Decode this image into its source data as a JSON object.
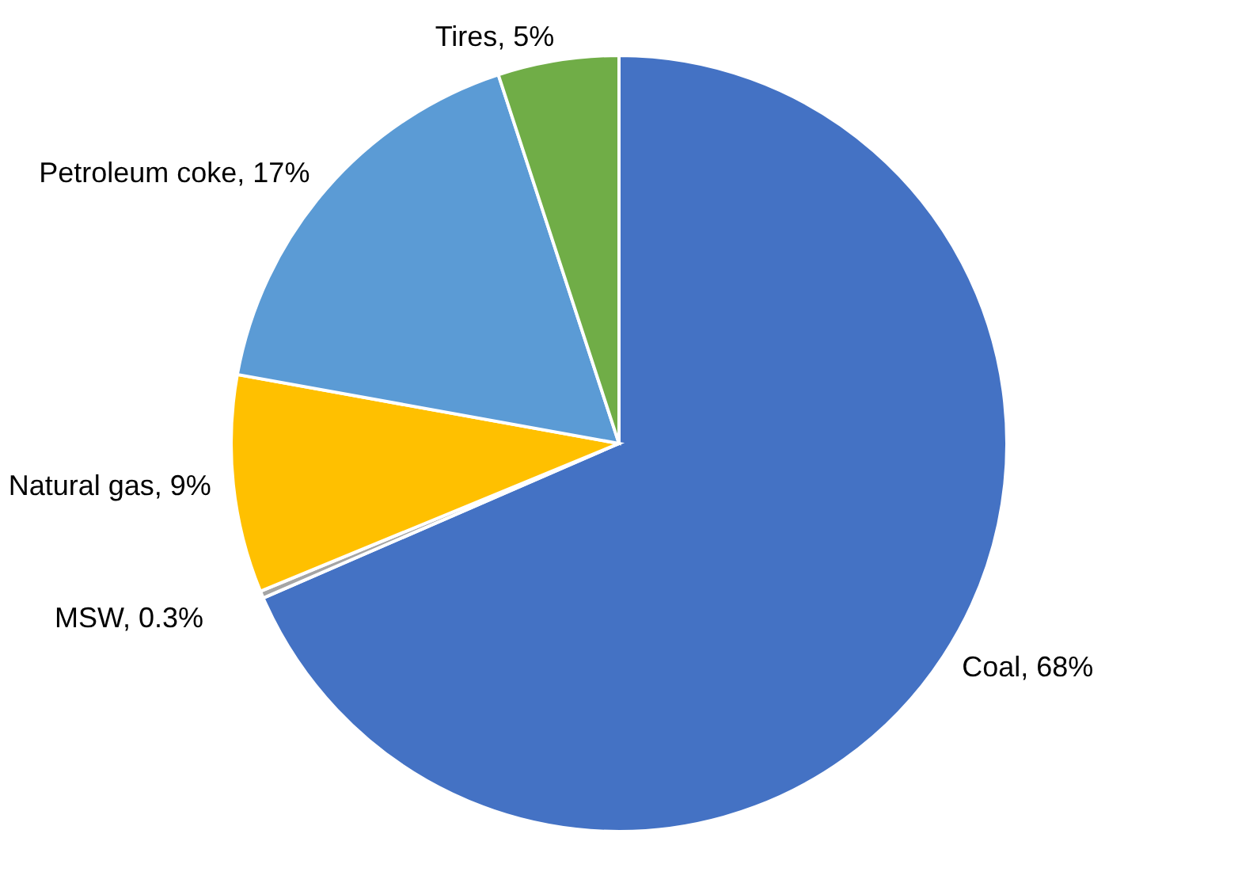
{
  "chart_data": {
    "type": "pie",
    "categories": [
      "Coal",
      "MSW",
      "Natural gas",
      "Petroleum coke",
      "Tires"
    ],
    "values": [
      68,
      0.3,
      9,
      17,
      5
    ],
    "value_labels": [
      "68%",
      "0.3%",
      "9%",
      "17%",
      "5%"
    ],
    "colors": [
      "#4472c4",
      "#a5a5a5",
      "#ffc000",
      "#5b9bd5",
      "#70ad47"
    ]
  }
}
